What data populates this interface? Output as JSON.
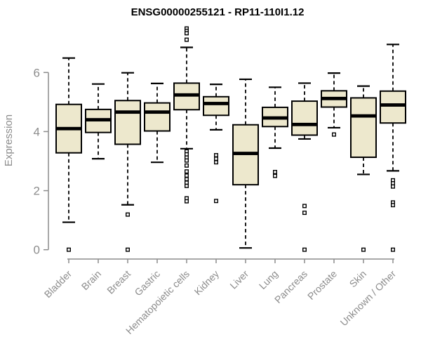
{
  "chart_data": {
    "type": "boxplot",
    "title": "ENSG00000255121 - RP11-110I1.12",
    "ylabel": "Expression",
    "xlabel": "",
    "ylim": [
      0,
      7.6
    ],
    "yticks": [
      0,
      2,
      4,
      6
    ],
    "grid": false,
    "legend": false,
    "colors": {
      "box_fill": "#EDE8CD",
      "box_stroke": "#000000",
      "median": "#000000",
      "whisker": "#000000",
      "outlier_stroke": "#000000",
      "outlier_fill": "#FFFFFF",
      "axis": "#8C8C8C",
      "tick_label": "#8C8C8C",
      "title_text": "#000000",
      "background": "#FFFFFF"
    },
    "categories": [
      "Bladder",
      "Brain",
      "Breast",
      "Gastric",
      "Hematopoietic cells",
      "Kidney",
      "Liver",
      "Lung",
      "Pancreas",
      "Prostate",
      "Skin",
      "Unknown / Other"
    ],
    "series": [
      {
        "category": "Bladder",
        "whisker_low": 0.93,
        "q1": 3.28,
        "median": 4.1,
        "q3": 4.92,
        "whisker_high": 6.49,
        "outliers": [
          0
        ]
      },
      {
        "category": "Brain",
        "whisker_low": 3.08,
        "q1": 3.97,
        "median": 4.4,
        "q3": 4.75,
        "whisker_high": 5.61,
        "outliers": []
      },
      {
        "category": "Breast",
        "whisker_low": 1.52,
        "q1": 3.57,
        "median": 4.66,
        "q3": 5.05,
        "whisker_high": 5.99,
        "outliers": [
          1.19,
          0
        ]
      },
      {
        "category": "Gastric",
        "whisker_low": 2.96,
        "q1": 4.02,
        "median": 4.66,
        "q3": 4.97,
        "whisker_high": 5.63,
        "outliers": []
      },
      {
        "category": "Hematopoietic cells",
        "whisker_low": 3.42,
        "q1": 4.74,
        "median": 5.24,
        "q3": 5.64,
        "whisker_high": 6.85,
        "outliers": [
          7.49,
          7.41,
          7.33,
          7.11,
          3.33,
          3.23,
          3.12,
          3.02,
          2.85,
          2.65,
          2.51,
          2.39,
          2.27,
          2.16,
          1.74,
          1.64
        ]
      },
      {
        "category": "Kidney",
        "whisker_low": 4.06,
        "q1": 4.55,
        "median": 4.95,
        "q3": 5.18,
        "whisker_high": 5.6,
        "outliers": [
          3.2,
          3.08,
          2.96,
          1.65
        ]
      },
      {
        "category": "Liver",
        "whisker_low": 0.06,
        "q1": 2.2,
        "median": 3.26,
        "q3": 4.23,
        "whisker_high": 5.77,
        "outliers": []
      },
      {
        "category": "Lung",
        "whisker_low": 3.44,
        "q1": 4.17,
        "median": 4.46,
        "q3": 4.82,
        "whisker_high": 5.5,
        "outliers": [
          2.63,
          2.5
        ]
      },
      {
        "category": "Pancreas",
        "whisker_low": 3.75,
        "q1": 3.88,
        "median": 4.24,
        "q3": 5.03,
        "whisker_high": 5.64,
        "outliers": [
          1.48,
          1.25,
          0
        ]
      },
      {
        "category": "Prostate",
        "whisker_low": 4.13,
        "q1": 4.83,
        "median": 5.12,
        "q3": 5.38,
        "whisker_high": 5.98,
        "outliers": [
          3.9
        ]
      },
      {
        "category": "Skin",
        "whisker_low": 2.55,
        "q1": 3.13,
        "median": 4.53,
        "q3": 5.14,
        "whisker_high": 5.54,
        "outliers": [
          0
        ]
      },
      {
        "category": "Unknown / Other",
        "whisker_low": 2.67,
        "q1": 4.29,
        "median": 4.9,
        "q3": 5.37,
        "whisker_high": 6.95,
        "outliers": [
          2.35,
          2.25,
          2.14,
          1.6,
          1.51,
          0
        ]
      }
    ]
  }
}
